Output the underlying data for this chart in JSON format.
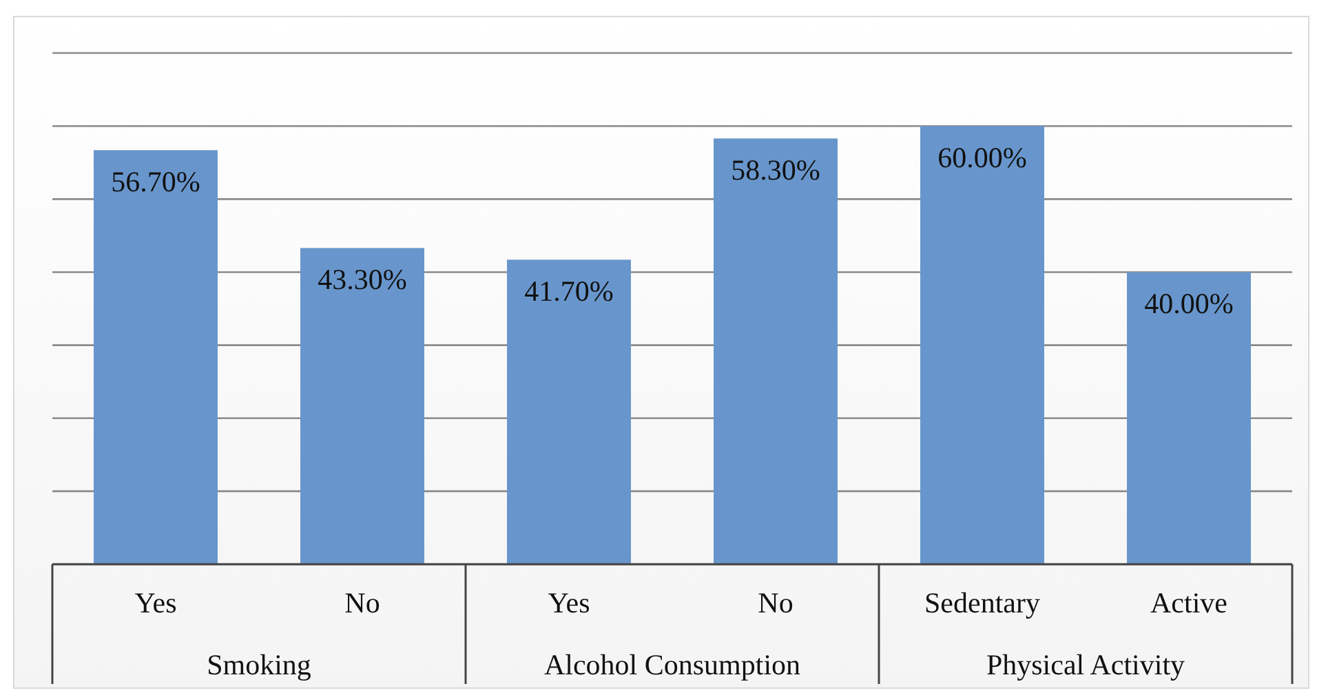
{
  "chart_data": {
    "type": "bar",
    "categories": [
      "Yes",
      "No",
      "Yes",
      "No",
      "Sedentary",
      "Active"
    ],
    "values": [
      56.7,
      43.3,
      41.7,
      58.3,
      60.0,
      40.0
    ],
    "value_labels": [
      "56.70%",
      "43.30%",
      "41.70%",
      "58.30%",
      "60.00%",
      "40.00%"
    ],
    "color": "#6896cc",
    "ylim": [
      0,
      75
    ],
    "yticks": [
      {
        "value": 0,
        "label": null
      },
      {
        "value": 10,
        "label": null
      },
      {
        "value": 20,
        "label": null
      },
      {
        "value": 30,
        "label": null
      },
      {
        "value": 40,
        "label": null
      },
      {
        "value": 50,
        "label": null
      },
      {
        "value": 60,
        "label": null
      },
      {
        "value": 70,
        "label": null
      }
    ],
    "tick_labels": "x",
    "grid": "y",
    "annotations": [
      "Smoking",
      "Alcohol Consumption",
      "Physical Activity"
    ]
  }
}
